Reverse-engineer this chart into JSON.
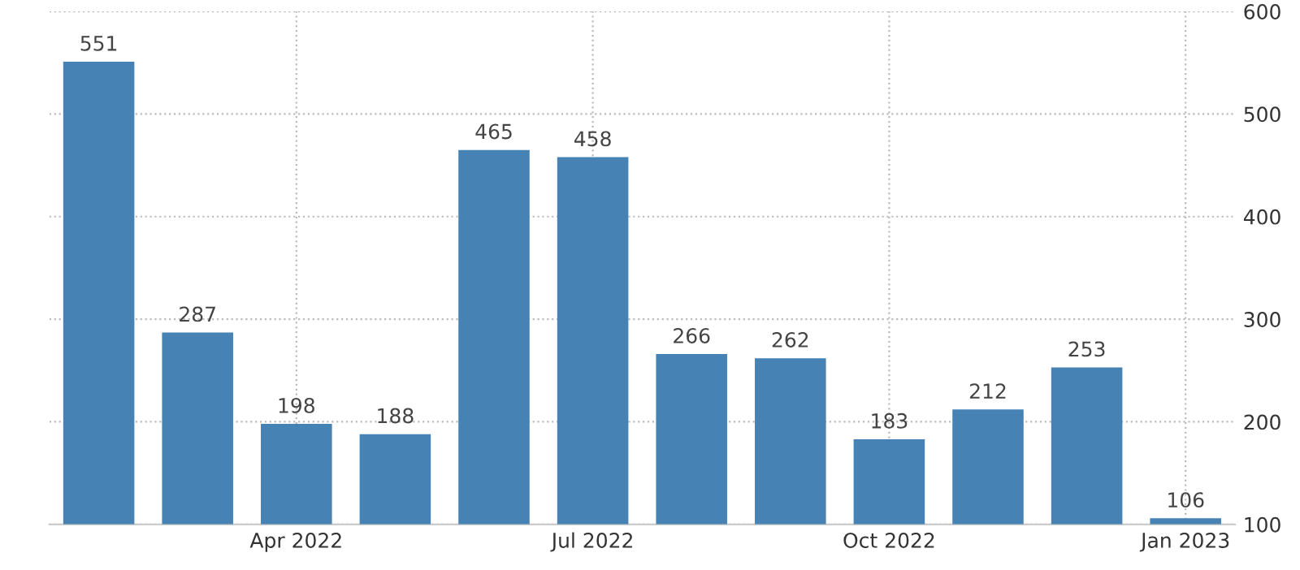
{
  "chart_data": {
    "type": "bar",
    "categories": [
      null,
      null,
      "Apr 2022",
      null,
      null,
      "Jul 2022",
      null,
      null,
      "Oct 2022",
      null,
      null,
      "Jan 2023"
    ],
    "values": [
      551,
      287,
      198,
      188,
      465,
      458,
      266,
      262,
      183,
      212,
      253,
      106
    ],
    "color": "#4682b4",
    "ylim": [
      100,
      600
    ],
    "yticks": [
      100,
      200,
      300,
      400,
      500,
      600
    ],
    "grid": true,
    "data_labels": true
  }
}
